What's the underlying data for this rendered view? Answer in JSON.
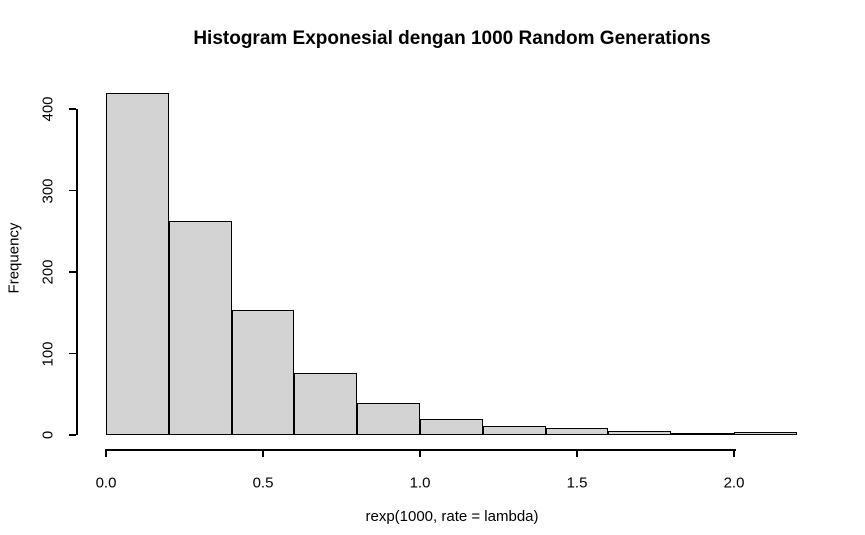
{
  "figure": {
    "background": "#ffffff",
    "text_color": "#000000"
  },
  "chart_data": {
    "type": "bar",
    "subtype": "histogram",
    "title": "Histogram Exponesial dengan 1000 Random Generations",
    "xlabel": "rexp(1000, rate = lambda)",
    "ylabel": "Frequency",
    "bin_edges": [
      0.0,
      0.2,
      0.4,
      0.6,
      0.8,
      1.0,
      1.2,
      1.4,
      1.6,
      1.8,
      2.0,
      2.2
    ],
    "frequencies": [
      420,
      262,
      153,
      76,
      39,
      20,
      11,
      9,
      5,
      1,
      4
    ],
    "x_ticks": [
      {
        "value": 0.0,
        "label": "0.0"
      },
      {
        "value": 0.5,
        "label": "0.5"
      },
      {
        "value": 1.0,
        "label": "1.0"
      },
      {
        "value": 1.5,
        "label": "1.5"
      },
      {
        "value": 2.0,
        "label": "2.0"
      }
    ],
    "y_ticks": [
      {
        "value": 0,
        "label": "0"
      },
      {
        "value": 100,
        "label": "100"
      },
      {
        "value": 200,
        "label": "200"
      },
      {
        "value": 300,
        "label": "300"
      },
      {
        "value": 400,
        "label": "400"
      }
    ],
    "xlim": [
      0,
      2.2
    ],
    "ylim": [
      0,
      420
    ],
    "grid": false,
    "legend": false,
    "bar_fill": "#d3d3d3",
    "bar_border": "#000000"
  }
}
